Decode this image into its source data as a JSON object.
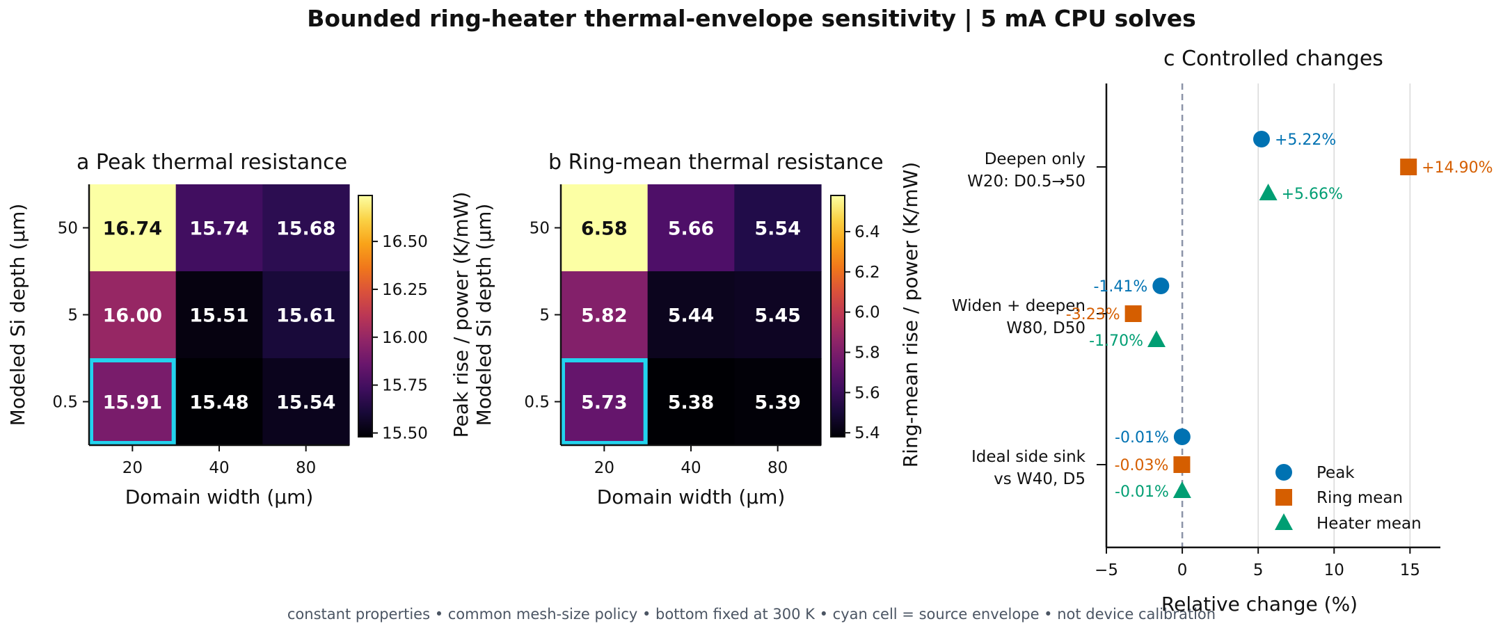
{
  "title": "Bounded ring-heater thermal-envelope sensitivity | 5 mA CPU solves",
  "footnote": "constant properties • common mesh-size policy • bottom fixed at 300 K • cyan cell = source envelope • not device calibration",
  "colors": {
    "highlight": "#22d3ee",
    "peak": "#0072b2",
    "ring_mean": "#d55e00",
    "heater_mean": "#009e73",
    "colormap": "inferno"
  },
  "chart_data": [
    {
      "type": "heatmap",
      "panel": "a",
      "title": "Peak thermal resistance",
      "xlabel": "Domain width (µm)",
      "ylabel": "Modeled Si depth (µm)",
      "colorbar_label": "Peak rise / power (K/mW)",
      "x_categories": [
        "20",
        "40",
        "80"
      ],
      "y_categories": [
        "50",
        "5",
        "0.5"
      ],
      "values": [
        [
          16.74,
          15.74,
          15.68
        ],
        [
          16.0,
          15.51,
          15.61
        ],
        [
          15.91,
          15.48,
          15.54
        ]
      ],
      "value_labels": [
        [
          "16.74",
          "15.74",
          "15.68"
        ],
        [
          "16.00",
          "15.51",
          "15.61"
        ],
        [
          "15.91",
          "15.48",
          "15.54"
        ]
      ],
      "highlight": {
        "row": 2,
        "col": 0
      },
      "color_range": [
        15.48,
        16.74
      ],
      "colorbar_ticks": [
        15.5,
        15.75,
        16.0,
        16.25,
        16.5
      ],
      "colorbar_tick_labels": [
        "15.50",
        "15.75",
        "16.00",
        "16.25",
        "16.50"
      ]
    },
    {
      "type": "heatmap",
      "panel": "b",
      "title": "Ring-mean thermal resistance",
      "xlabel": "Domain width (µm)",
      "ylabel": "Modeled Si depth (µm)",
      "colorbar_label": "Ring-mean rise / power (K/mW)",
      "x_categories": [
        "20",
        "40",
        "80"
      ],
      "y_categories": [
        "50",
        "5",
        "0.5"
      ],
      "values": [
        [
          6.58,
          5.66,
          5.54
        ],
        [
          5.82,
          5.44,
          5.45
        ],
        [
          5.73,
          5.38,
          5.39
        ]
      ],
      "value_labels": [
        [
          "6.58",
          "5.66",
          "5.54"
        ],
        [
          "5.82",
          "5.44",
          "5.45"
        ],
        [
          "5.73",
          "5.38",
          "5.39"
        ]
      ],
      "highlight": {
        "row": 2,
        "col": 0
      },
      "color_range": [
        5.38,
        6.58
      ],
      "colorbar_ticks": [
        5.4,
        5.6,
        5.8,
        6.0,
        6.2,
        6.4
      ],
      "colorbar_tick_labels": [
        "5.4",
        "5.6",
        "5.8",
        "6.0",
        "6.2",
        "6.4"
      ]
    },
    {
      "type": "scatter",
      "panel": "c",
      "title": "Controlled changes",
      "xlabel": "Relative change (%)",
      "xlim": [
        -5,
        17
      ],
      "x_ticks": [
        -5,
        0,
        5,
        10,
        15
      ],
      "x_tick_labels": [
        "−5",
        "0",
        "5",
        "10",
        "15"
      ],
      "grid": "vertical",
      "reference_line_x": 0,
      "legend_position": "lower-right",
      "groups": [
        {
          "label_lines": [
            "Deepen only",
            "W20: D0.5→50"
          ]
        },
        {
          "label_lines": [
            "Widen + deepen",
            "W80, D50"
          ]
        },
        {
          "label_lines": [
            "Ideal side sink",
            "vs W40, D5"
          ]
        }
      ],
      "series": [
        {
          "name": "Peak",
          "marker": "circle",
          "values": [
            5.22,
            -1.41,
            -0.01
          ],
          "labels": [
            "+5.22%",
            "-1.41%",
            "-0.01%"
          ]
        },
        {
          "name": "Ring mean",
          "marker": "square",
          "values": [
            14.9,
            -3.23,
            -0.03
          ],
          "labels": [
            "+14.90%",
            "-3.23%",
            "-0.03%"
          ]
        },
        {
          "name": "Heater mean",
          "marker": "triangle",
          "values": [
            5.66,
            -1.7,
            -0.01
          ],
          "labels": [
            "+5.66%",
            "-1.70%",
            "-0.01%"
          ]
        }
      ]
    }
  ]
}
